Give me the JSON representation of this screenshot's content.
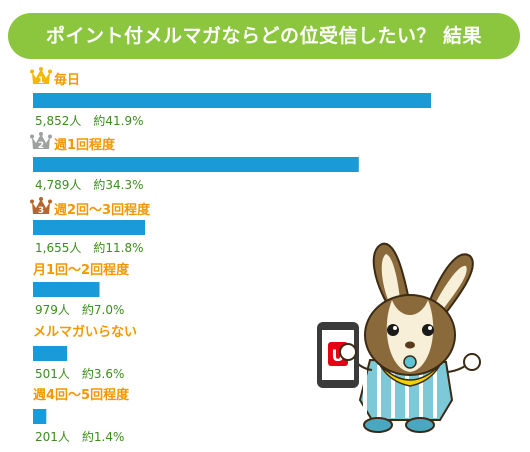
{
  "title": "ポイント付メルマガならどの位受信したい？ 結果",
  "colors": {
    "title_bg": "#8cc63f",
    "bar": "#1a9ad6",
    "category_label": "#f39800",
    "value_label": "#3c8c1e",
    "gold": "#f5b800",
    "silver": "#9fa0a0",
    "bronze": "#b5652d"
  },
  "chart_data": {
    "type": "bar",
    "orientation": "horizontal",
    "title": "ポイント付メルマガならどの位受信したい？ 結果",
    "categories": [
      "毎日",
      "週1回程度",
      "週2回～3回程度",
      "月1回～2回程度",
      "メルマガいらない",
      "週4回～5回程度"
    ],
    "values": [
      41.9,
      34.3,
      11.8,
      7.0,
      3.6,
      1.4
    ],
    "counts": [
      5852,
      4789,
      1655,
      979,
      501,
      201
    ],
    "value_labels": [
      "5,852人　約41.9%",
      "4,789人　約34.3%",
      "1,655人　約11.8%",
      "979人　約7.0%",
      "501人　約3.6%",
      "201人　約1.4%"
    ],
    "ranks": [
      1,
      2,
      3,
      null,
      null,
      null
    ],
    "rank_icons": [
      "crown-gold-1-icon",
      "crown-silver-2-icon",
      "crown-bronze-3-icon"
    ],
    "unit": "%",
    "grid": false,
    "legend": "none"
  },
  "illustration": {
    "name": "rabbit-mascot-holding-smartphone",
    "phone_logo": "U"
  }
}
